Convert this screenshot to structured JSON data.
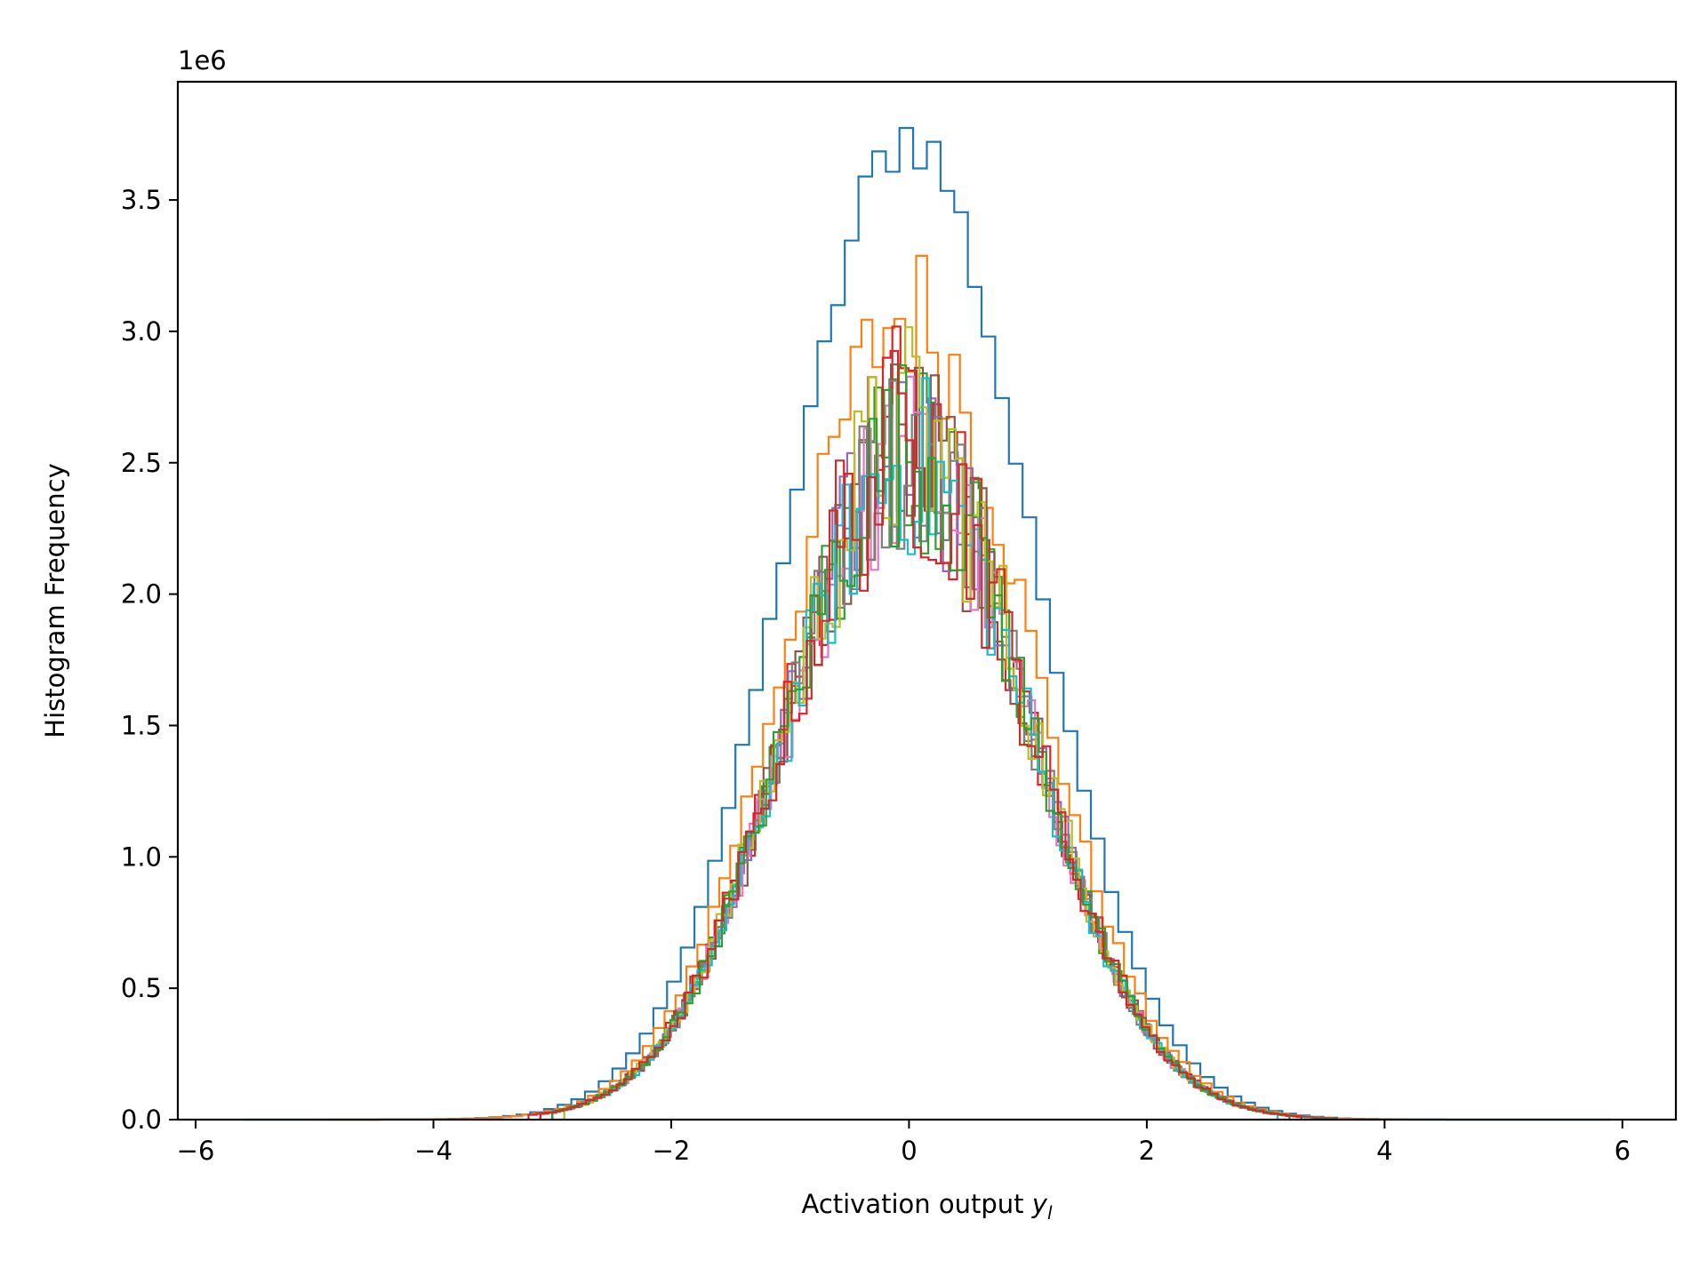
{
  "chart_data": {
    "type": "histogram",
    "title": "",
    "xlabel_main": "Activation output ",
    "xlabel_var": "y",
    "xlabel_sub": "l",
    "ylabel": "Histogram Frequency",
    "y_offset_label": "1e6",
    "xlim": [
      -6.15,
      6.45
    ],
    "ylim": [
      0,
      3.95
    ],
    "y_scale": 1000000,
    "xticks": [
      -6,
      -4,
      -2,
      0,
      2,
      4,
      6
    ],
    "xtick_labels": [
      "−6",
      "−4",
      "−2",
      "0",
      "2",
      "4",
      "6"
    ],
    "yticks": [
      0,
      0.5,
      1.0,
      1.5,
      2.0,
      2.5,
      3.0,
      3.5
    ],
    "ytick_labels": [
      "0.0",
      "0.5",
      "1.0",
      "1.5",
      "2.0",
      "2.5",
      "3.0",
      "3.5"
    ],
    "grid": false,
    "legend": "none",
    "series": [
      {
        "color": "#1f77b4",
        "bins": 100,
        "range": [
          -5.6,
          5.9
        ],
        "peak": 3.75,
        "sigma": 1.0,
        "noise": 0.015
      },
      {
        "color": "#ff7f0e",
        "bins": 100,
        "range": [
          -5.0,
          4.2
        ],
        "peak": 3.07,
        "sigma": 1.0,
        "noise": 0.04
      },
      {
        "color": "#2ca02c",
        "bins": 100,
        "range": [
          -3.0,
          3.3
        ],
        "peak": 2.55,
        "sigma": 1.0,
        "noise": 0.06
      },
      {
        "color": "#d62728",
        "bins": 100,
        "range": [
          -3.2,
          3.6
        ],
        "peak": 2.6,
        "sigma": 1.0,
        "noise": 0.07
      },
      {
        "color": "#9467bd",
        "bins": 100,
        "range": [
          -3.0,
          3.2
        ],
        "peak": 2.55,
        "sigma": 1.0,
        "noise": 0.06
      },
      {
        "color": "#8c564b",
        "bins": 100,
        "range": [
          -3.1,
          3.6
        ],
        "peak": 2.55,
        "sigma": 1.0,
        "noise": 0.07
      },
      {
        "color": "#e377c2",
        "bins": 100,
        "range": [
          -2.9,
          3.1
        ],
        "peak": 2.5,
        "sigma": 1.0,
        "noise": 0.06
      },
      {
        "color": "#7f7f7f",
        "bins": 100,
        "range": [
          -3.0,
          3.3
        ],
        "peak": 2.55,
        "sigma": 1.0,
        "noise": 0.06
      },
      {
        "color": "#bcbd22",
        "bins": 100,
        "range": [
          -2.9,
          3.2
        ],
        "peak": 2.6,
        "sigma": 1.0,
        "noise": 0.07
      },
      {
        "color": "#17becf",
        "bins": 100,
        "range": [
          -3.0,
          3.1
        ],
        "peak": 2.5,
        "sigma": 1.0,
        "noise": 0.06
      },
      {
        "color": "#2ca02c",
        "bins": 100,
        "range": [
          -3.0,
          3.2
        ],
        "peak": 2.55,
        "sigma": 1.0,
        "noise": 0.06
      },
      {
        "color": "#d62728",
        "bins": 100,
        "range": [
          -3.1,
          3.3
        ],
        "peak": 2.55,
        "sigma": 1.0,
        "noise": 0.07
      }
    ]
  }
}
